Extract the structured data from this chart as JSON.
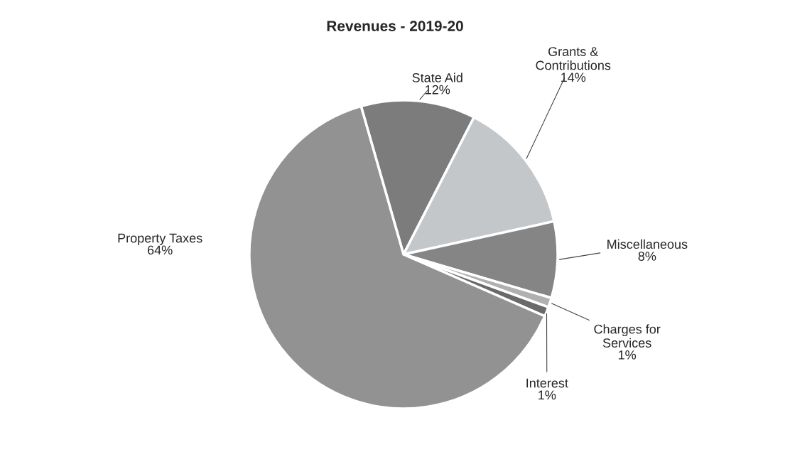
{
  "chart_data": {
    "type": "pie",
    "title": "Revenues - 2019-20",
    "categories": [
      "State Aid",
      "Grants & Contributions",
      "Miscellaneous",
      "Charges for Services",
      "Interest",
      "Property Taxes"
    ],
    "values": [
      12,
      14,
      8,
      1,
      1,
      64
    ],
    "value_labels": [
      "12%",
      "14%",
      "8%",
      "1%",
      "1%",
      "64%"
    ],
    "colors": [
      "#7c7c7c",
      "#c3c7c9",
      "#858585",
      "#b0b0b0",
      "#6a6a6a",
      "#929292"
    ],
    "legend": false
  }
}
